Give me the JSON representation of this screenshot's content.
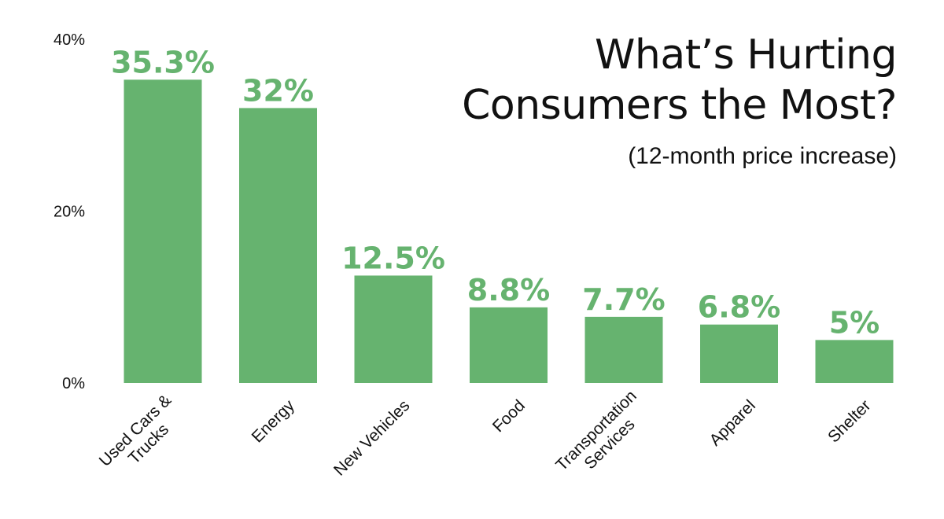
{
  "chart_data": {
    "type": "bar",
    "title_lines": [
      "What’s Hurting",
      "Consumers the Most?"
    ],
    "subtitle": "(12-month price increase)",
    "categories": [
      [
        "Used Cars &",
        "Trucks"
      ],
      [
        "Energy"
      ],
      [
        "New Vehicles"
      ],
      [
        "Food"
      ],
      [
        "Transportation",
        "Services"
      ],
      [
        "Apparel"
      ],
      [
        "Shelter"
      ]
    ],
    "values": [
      35.3,
      32,
      12.5,
      8.8,
      7.7,
      6.8,
      5
    ],
    "value_labels": [
      "35.3%",
      "32%",
      "12.5%",
      "8.8%",
      "7.7%",
      "6.8%",
      "5%"
    ],
    "ylim": [
      0,
      40
    ],
    "yticks": [
      0,
      20,
      40
    ],
    "ytick_labels": [
      "0%",
      "20%",
      "40%"
    ],
    "xlabel": "",
    "ylabel": "",
    "grid": false,
    "colors": {
      "bar": "#66b36f",
      "value_label": "#66b36f",
      "text": "#111111"
    }
  }
}
